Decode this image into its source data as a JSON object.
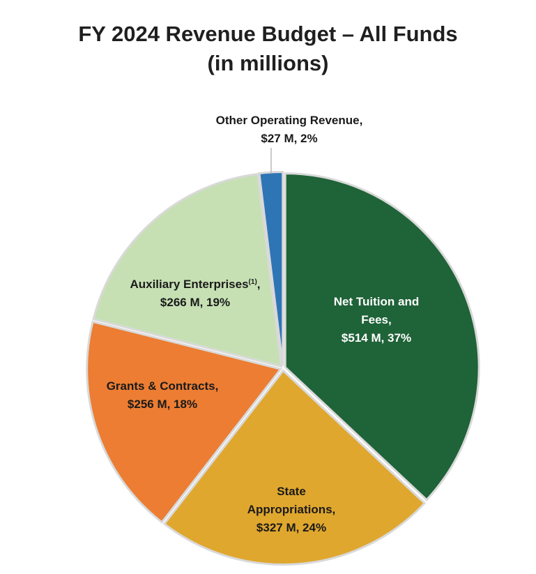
{
  "chart_data": {
    "type": "pie",
    "title": "FY 2024 Revenue Budget – All Funds",
    "subtitle": "(in millions)",
    "slices": [
      {
        "name": "Net Tuition and Fees",
        "value": 514,
        "percent": 37,
        "color": "#1f6338",
        "label_lines": [
          "Net Tuition and",
          "Fees,",
          "$514 M, 37%"
        ],
        "label_color": "#ffffff"
      },
      {
        "name": "State Appropriations",
        "value": 327,
        "percent": 24,
        "color": "#e0a72e",
        "label_lines": [
          "State",
          "Appropriations,",
          "$327 M, 24%"
        ],
        "label_color": "#1a1a1a"
      },
      {
        "name": "Grants & Contracts",
        "value": 256,
        "percent": 18,
        "color": "#ec7d32",
        "label_lines": [
          "Grants & Contracts,",
          "$256 M, 18%"
        ],
        "label_color": "#1a1a1a"
      },
      {
        "name": "Auxiliary Enterprises",
        "value": 266,
        "percent": 19,
        "color": "#c6e0b4",
        "label_lines": [
          "Auxiliary Enterprises",
          "$266 M, 19%"
        ],
        "footnote": "(1)",
        "label_color": "#1a1a1a"
      },
      {
        "name": "Other Operating Revenue",
        "value": 27,
        "percent": 2,
        "color": "#2e75b6",
        "label_lines": [
          "Other Operating Revenue,",
          "$27 M, 2%"
        ],
        "label_color": "#1a1a1a"
      }
    ]
  }
}
